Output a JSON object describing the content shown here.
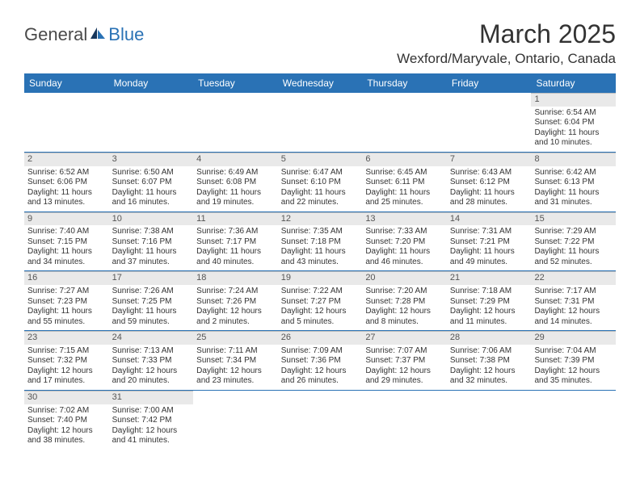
{
  "logo": {
    "part1": "General",
    "part2": "Blue"
  },
  "title": "March 2025",
  "location": "Wexford/Maryvale, Ontario, Canada",
  "colors": {
    "header_bg": "#2a72b5",
    "header_text": "#ffffff",
    "daynum_bg": "#e9e9e9",
    "cell_border": "#bfbfbf",
    "week_divider": "#2a72b5",
    "text": "#333333",
    "logo_gray": "#4a4a4a",
    "logo_blue": "#2a72b5"
  },
  "dayNames": [
    "Sunday",
    "Monday",
    "Tuesday",
    "Wednesday",
    "Thursday",
    "Friday",
    "Saturday"
  ],
  "weeks": [
    [
      null,
      null,
      null,
      null,
      null,
      null,
      {
        "n": "1",
        "sr": "Sunrise: 6:54 AM",
        "ss": "Sunset: 6:04 PM",
        "d1": "Daylight: 11 hours",
        "d2": "and 10 minutes."
      }
    ],
    [
      {
        "n": "2",
        "sr": "Sunrise: 6:52 AM",
        "ss": "Sunset: 6:06 PM",
        "d1": "Daylight: 11 hours",
        "d2": "and 13 minutes."
      },
      {
        "n": "3",
        "sr": "Sunrise: 6:50 AM",
        "ss": "Sunset: 6:07 PM",
        "d1": "Daylight: 11 hours",
        "d2": "and 16 minutes."
      },
      {
        "n": "4",
        "sr": "Sunrise: 6:49 AM",
        "ss": "Sunset: 6:08 PM",
        "d1": "Daylight: 11 hours",
        "d2": "and 19 minutes."
      },
      {
        "n": "5",
        "sr": "Sunrise: 6:47 AM",
        "ss": "Sunset: 6:10 PM",
        "d1": "Daylight: 11 hours",
        "d2": "and 22 minutes."
      },
      {
        "n": "6",
        "sr": "Sunrise: 6:45 AM",
        "ss": "Sunset: 6:11 PM",
        "d1": "Daylight: 11 hours",
        "d2": "and 25 minutes."
      },
      {
        "n": "7",
        "sr": "Sunrise: 6:43 AM",
        "ss": "Sunset: 6:12 PM",
        "d1": "Daylight: 11 hours",
        "d2": "and 28 minutes."
      },
      {
        "n": "8",
        "sr": "Sunrise: 6:42 AM",
        "ss": "Sunset: 6:13 PM",
        "d1": "Daylight: 11 hours",
        "d2": "and 31 minutes."
      }
    ],
    [
      {
        "n": "9",
        "sr": "Sunrise: 7:40 AM",
        "ss": "Sunset: 7:15 PM",
        "d1": "Daylight: 11 hours",
        "d2": "and 34 minutes."
      },
      {
        "n": "10",
        "sr": "Sunrise: 7:38 AM",
        "ss": "Sunset: 7:16 PM",
        "d1": "Daylight: 11 hours",
        "d2": "and 37 minutes."
      },
      {
        "n": "11",
        "sr": "Sunrise: 7:36 AM",
        "ss": "Sunset: 7:17 PM",
        "d1": "Daylight: 11 hours",
        "d2": "and 40 minutes."
      },
      {
        "n": "12",
        "sr": "Sunrise: 7:35 AM",
        "ss": "Sunset: 7:18 PM",
        "d1": "Daylight: 11 hours",
        "d2": "and 43 minutes."
      },
      {
        "n": "13",
        "sr": "Sunrise: 7:33 AM",
        "ss": "Sunset: 7:20 PM",
        "d1": "Daylight: 11 hours",
        "d2": "and 46 minutes."
      },
      {
        "n": "14",
        "sr": "Sunrise: 7:31 AM",
        "ss": "Sunset: 7:21 PM",
        "d1": "Daylight: 11 hours",
        "d2": "and 49 minutes."
      },
      {
        "n": "15",
        "sr": "Sunrise: 7:29 AM",
        "ss": "Sunset: 7:22 PM",
        "d1": "Daylight: 11 hours",
        "d2": "and 52 minutes."
      }
    ],
    [
      {
        "n": "16",
        "sr": "Sunrise: 7:27 AM",
        "ss": "Sunset: 7:23 PM",
        "d1": "Daylight: 11 hours",
        "d2": "and 55 minutes."
      },
      {
        "n": "17",
        "sr": "Sunrise: 7:26 AM",
        "ss": "Sunset: 7:25 PM",
        "d1": "Daylight: 11 hours",
        "d2": "and 59 minutes."
      },
      {
        "n": "18",
        "sr": "Sunrise: 7:24 AM",
        "ss": "Sunset: 7:26 PM",
        "d1": "Daylight: 12 hours",
        "d2": "and 2 minutes."
      },
      {
        "n": "19",
        "sr": "Sunrise: 7:22 AM",
        "ss": "Sunset: 7:27 PM",
        "d1": "Daylight: 12 hours",
        "d2": "and 5 minutes."
      },
      {
        "n": "20",
        "sr": "Sunrise: 7:20 AM",
        "ss": "Sunset: 7:28 PM",
        "d1": "Daylight: 12 hours",
        "d2": "and 8 minutes."
      },
      {
        "n": "21",
        "sr": "Sunrise: 7:18 AM",
        "ss": "Sunset: 7:29 PM",
        "d1": "Daylight: 12 hours",
        "d2": "and 11 minutes."
      },
      {
        "n": "22",
        "sr": "Sunrise: 7:17 AM",
        "ss": "Sunset: 7:31 PM",
        "d1": "Daylight: 12 hours",
        "d2": "and 14 minutes."
      }
    ],
    [
      {
        "n": "23",
        "sr": "Sunrise: 7:15 AM",
        "ss": "Sunset: 7:32 PM",
        "d1": "Daylight: 12 hours",
        "d2": "and 17 minutes."
      },
      {
        "n": "24",
        "sr": "Sunrise: 7:13 AM",
        "ss": "Sunset: 7:33 PM",
        "d1": "Daylight: 12 hours",
        "d2": "and 20 minutes."
      },
      {
        "n": "25",
        "sr": "Sunrise: 7:11 AM",
        "ss": "Sunset: 7:34 PM",
        "d1": "Daylight: 12 hours",
        "d2": "and 23 minutes."
      },
      {
        "n": "26",
        "sr": "Sunrise: 7:09 AM",
        "ss": "Sunset: 7:36 PM",
        "d1": "Daylight: 12 hours",
        "d2": "and 26 minutes."
      },
      {
        "n": "27",
        "sr": "Sunrise: 7:07 AM",
        "ss": "Sunset: 7:37 PM",
        "d1": "Daylight: 12 hours",
        "d2": "and 29 minutes."
      },
      {
        "n": "28",
        "sr": "Sunrise: 7:06 AM",
        "ss": "Sunset: 7:38 PM",
        "d1": "Daylight: 12 hours",
        "d2": "and 32 minutes."
      },
      {
        "n": "29",
        "sr": "Sunrise: 7:04 AM",
        "ss": "Sunset: 7:39 PM",
        "d1": "Daylight: 12 hours",
        "d2": "and 35 minutes."
      }
    ],
    [
      {
        "n": "30",
        "sr": "Sunrise: 7:02 AM",
        "ss": "Sunset: 7:40 PM",
        "d1": "Daylight: 12 hours",
        "d2": "and 38 minutes."
      },
      {
        "n": "31",
        "sr": "Sunrise: 7:00 AM",
        "ss": "Sunset: 7:42 PM",
        "d1": "Daylight: 12 hours",
        "d2": "and 41 minutes."
      },
      null,
      null,
      null,
      null,
      null
    ]
  ]
}
